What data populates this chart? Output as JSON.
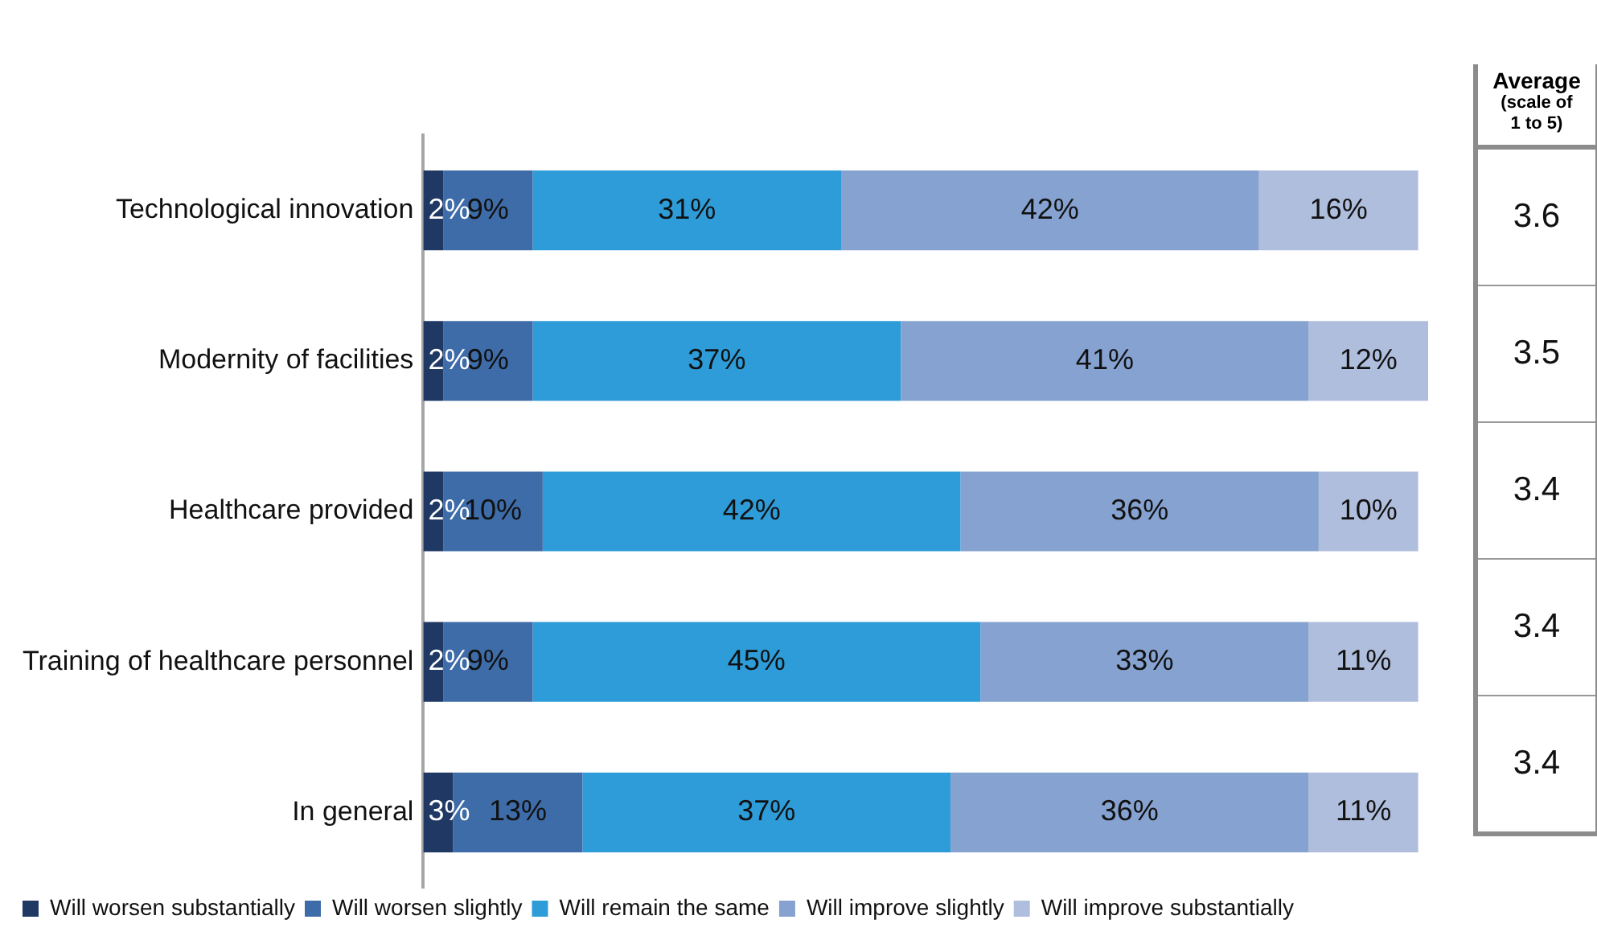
{
  "chart_data": [
    {
      "type": "bar",
      "orientation": "horizontal",
      "stacked": true,
      "categories": [
        "Technological innovation",
        "Modernity of facilities",
        "Healthcare provided",
        "Training of healthcare personnel",
        "In general"
      ],
      "series": [
        {
          "name": "Will worsen substantially",
          "color": "#1f3864",
          "values": [
            2,
            2,
            2,
            2,
            3
          ],
          "value_labels": [
            "2%",
            "2%",
            "2%",
            "2%",
            "3%"
          ]
        },
        {
          "name": "Will worsen slightly",
          "color": "#3e6ca8",
          "values": [
            9,
            9,
            10,
            9,
            13
          ],
          "value_labels": [
            "9%",
            "9%",
            "10%",
            "9%",
            "13%"
          ]
        },
        {
          "name": "Will remain the same",
          "color": "#2e9cd8",
          "values": [
            31,
            37,
            42,
            45,
            37
          ],
          "value_labels": [
            "31%",
            "37%",
            "42%",
            "45%",
            "37%"
          ]
        },
        {
          "name": "Will improve slightly",
          "color": "#86a2d0",
          "values": [
            42,
            41,
            36,
            33,
            36
          ],
          "value_labels": [
            "42%",
            "41%",
            "36%",
            "33%",
            "36%"
          ]
        },
        {
          "name": "Will improve substantially",
          "color": "#b0bedd",
          "values": [
            16,
            12,
            10,
            11,
            11
          ],
          "value_labels": [
            "16%",
            "12%",
            "10%",
            "11%",
            "11%"
          ]
        }
      ],
      "xlim": [
        0,
        101
      ],
      "tick_labels": "y",
      "grid": false,
      "legend": "bottom"
    },
    {
      "type": "other",
      "title": "Average",
      "subtitle": "(scale of 1 to 5)",
      "annotations": [
        "3.6",
        "3.5",
        "3.4",
        "3.4",
        "3.4"
      ]
    }
  ]
}
